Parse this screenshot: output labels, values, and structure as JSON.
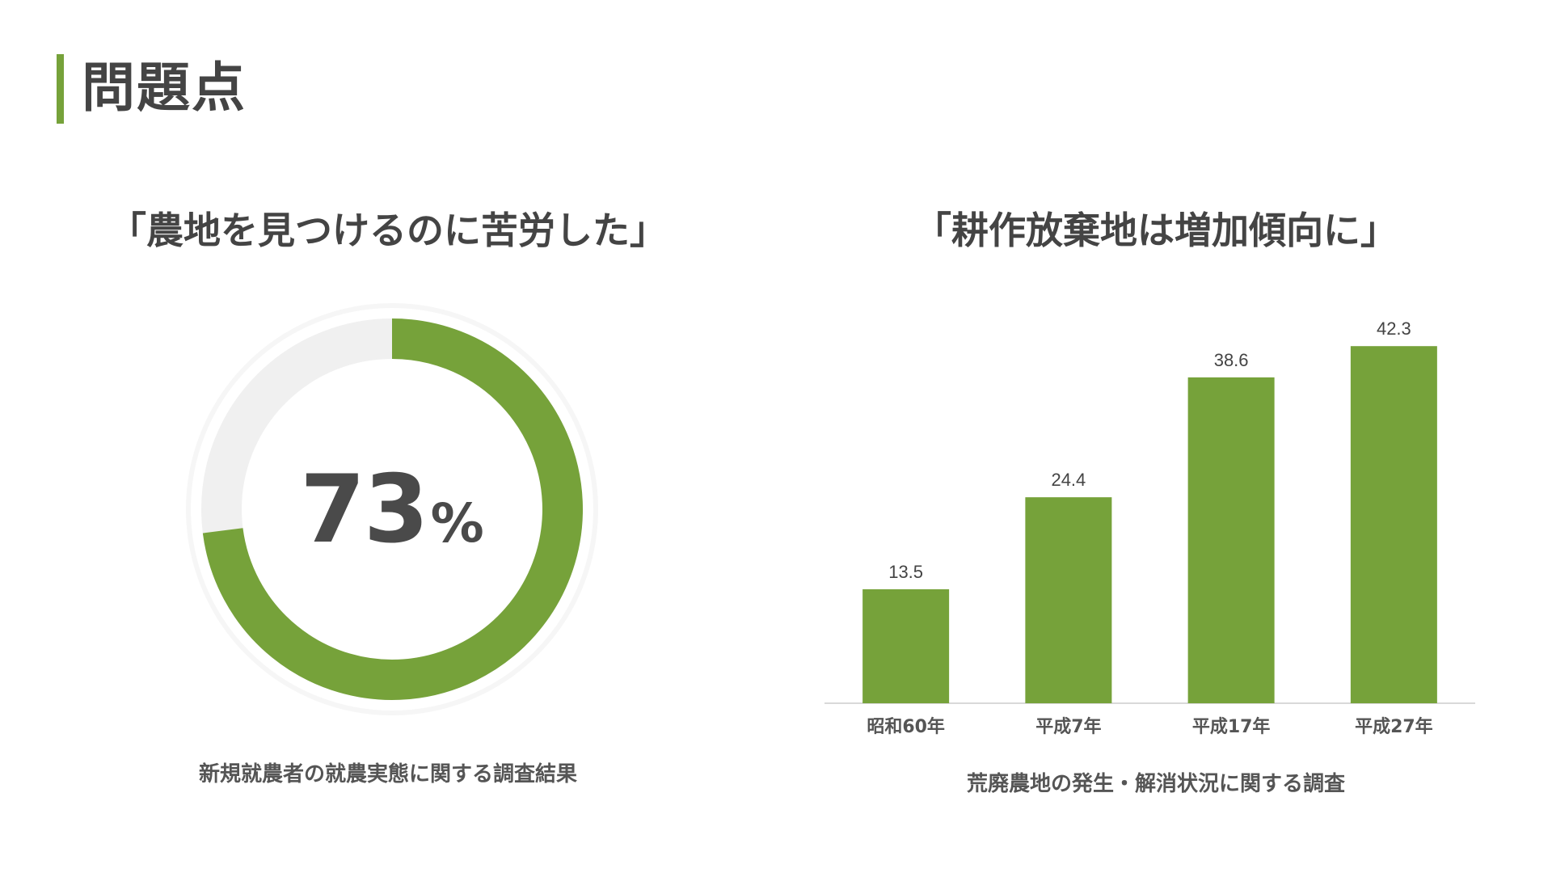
{
  "header": {
    "title": "問題点",
    "accent_color": "#76a23a"
  },
  "left_panel": {
    "title": "「農地を見つけるのに苦労した」",
    "source": "新規就農者の就農実態に関する調査結果"
  },
  "right_panel": {
    "title": "「耕作放棄地は増加傾向に」",
    "source": "荒廃農地の発生・解消状況に関する調査"
  },
  "chart_data": [
    {
      "type": "pie",
      "style": "donut",
      "value": 73,
      "unit": "%",
      "value_text": "73",
      "unit_text": "%",
      "fill_color": "#76a23a",
      "track_color": "#f0f0f0"
    },
    {
      "type": "bar",
      "categories": [
        "昭和60年",
        "平成7年",
        "平成17年",
        "平成27年"
      ],
      "values": [
        13.5,
        24.4,
        38.6,
        42.3
      ],
      "value_labels": [
        "13.5",
        "24.4",
        "38.6",
        "42.3"
      ],
      "ylim": [
        0,
        45
      ],
      "grid": false,
      "bar_color": "#76a23a",
      "axis_color": "#d9d9d9"
    }
  ]
}
